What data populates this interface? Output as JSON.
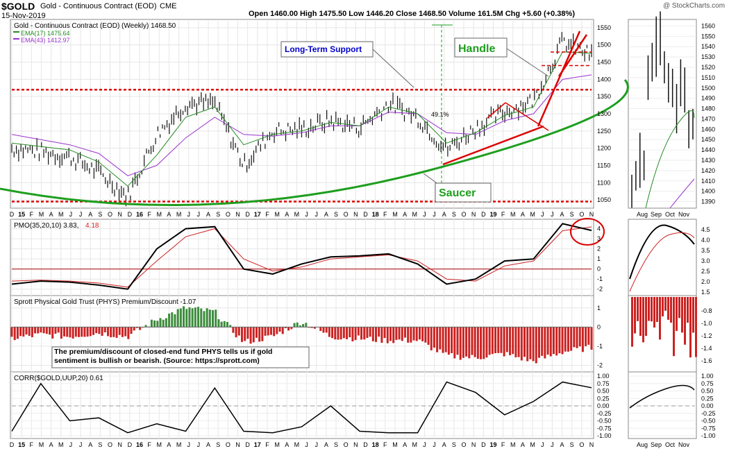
{
  "header": {
    "symbol": "$GOLD",
    "name": "Gold - Continuous Contract (EOD)",
    "exchange": "CME",
    "date": "15-Nov-2019",
    "quote": "Open 1460.00  High 1475.50  Low 1446.20  Close 1468.50  Volume 161.5M  Chg +5.60 (+0.38%)",
    "watermark": "@ StockCharts.com"
  },
  "colors": {
    "ema_fast": "#228b22",
    "ema_slow": "#9932cc",
    "support": "#dd0000",
    "saucer": "#1e9e1e",
    "bar_positive": "#3c8c3c",
    "bar_negative": "#cc2222",
    "annotation_text": "#0000cc"
  },
  "panels": {
    "price": {
      "title": "Gold - Continuous Contract (EOD) (Weekly) 1468.50",
      "legend": [
        {
          "label": "EMA(17) 1475.64",
          "color": "#228b22"
        },
        {
          "label": "EMA(43) 1412.97",
          "color": "#9932cc"
        }
      ],
      "annotations": {
        "long_term_support": "Long-Term Support",
        "handle": "Handle",
        "saucer": "Saucer",
        "pct": "49.1%"
      }
    },
    "pmo": {
      "title": "PMO(35,20,10) 3.83,",
      "value2": "4.18"
    },
    "phys": {
      "title": "Sprott Physical Gold Trust (PHYS) Premium/Discount -1.07",
      "note": "The premium/discount of closed-end fund PHYS tells us if gold sentiment is bullish or bearish. (Source: https://sprott.com)"
    },
    "corr": {
      "title": "CORR($GOLD,UUP,20) 0.61"
    }
  },
  "axes": {
    "main_months": [
      "D",
      "15",
      "F",
      "M",
      "A",
      "M",
      "J",
      "J",
      "A",
      "S",
      "O",
      "N",
      "D",
      "16",
      "F",
      "M",
      "A",
      "M",
      "J",
      "J",
      "A",
      "S",
      "O",
      "N",
      "D",
      "17",
      "F",
      "M",
      "A",
      "M",
      "J",
      "J",
      "A",
      "S",
      "O",
      "N",
      "D",
      "18",
      "F",
      "M",
      "A",
      "M",
      "J",
      "J",
      "A",
      "S",
      "O",
      "N",
      "D",
      "19",
      "F",
      "M",
      "A",
      "M",
      "J",
      "J",
      "A",
      "S",
      "O",
      "N"
    ],
    "side_months": [
      "Aug",
      "Sep",
      "Oct",
      "Nov"
    ],
    "price_ticks": [
      "1550",
      "1500",
      "1450",
      "1400",
      "1350",
      "1300",
      "1250",
      "1200",
      "1150",
      "1100",
      "1050"
    ],
    "price_ticks_side": [
      "1560",
      "1550",
      "1540",
      "1530",
      "1520",
      "1510",
      "1500",
      "1490",
      "1480",
      "1470",
      "1460",
      "1450",
      "1440",
      "1430",
      "1420",
      "1410",
      "1400",
      "1390"
    ],
    "pmo_ticks": [
      "4",
      "3",
      "2",
      "1",
      "0",
      "-1",
      "-2"
    ],
    "pmo_ticks_side": [
      "4.5",
      "4.0",
      "3.5",
      "3.0",
      "2.5",
      "2.0",
      "1.5"
    ],
    "phys_ticks": [
      "1",
      "0",
      "-1",
      "-2"
    ],
    "phys_ticks_side": [
      "-0.8",
      "-1.0",
      "-1.2",
      "-1.4",
      "-1.6"
    ],
    "corr_ticks": [
      "1.00",
      "0.75",
      "0.50",
      "0.25",
      "0.00",
      "-0.25",
      "-0.50",
      "-0.75",
      "-1.00"
    ]
  },
  "chart_data": [
    {
      "type": "line",
      "title": "Gold - Continuous Contract (EOD) (Weekly) 1468.50",
      "x": [
        "Dec-14",
        "Mar-15",
        "Jun-15",
        "Sep-15",
        "Dec-15",
        "Mar-16",
        "Jun-16",
        "Sep-16",
        "Dec-16",
        "Mar-17",
        "Jun-17",
        "Sep-17",
        "Dec-17",
        "Mar-18",
        "Jun-18",
        "Sep-18",
        "Dec-18",
        "Mar-19",
        "Jun-19",
        "Sep-19",
        "Nov-19"
      ],
      "series": [
        {
          "name": "Gold",
          "values": [
            1200,
            1190,
            1175,
            1130,
            1060,
            1240,
            1330,
            1330,
            1150,
            1250,
            1255,
            1280,
            1260,
            1330,
            1290,
            1195,
            1260,
            1305,
            1340,
            1510,
            1468.5
          ]
        },
        {
          "name": "EMA(17) 1475.64",
          "values": [
            1215,
            1205,
            1195,
            1160,
            1090,
            1180,
            1290,
            1320,
            1210,
            1240,
            1250,
            1275,
            1265,
            1320,
            1300,
            1215,
            1245,
            1295,
            1320,
            1480,
            1475.64
          ]
        },
        {
          "name": "EMA(43) 1412.97",
          "values": [
            1240,
            1225,
            1210,
            1185,
            1120,
            1150,
            1230,
            1290,
            1240,
            1235,
            1245,
            1265,
            1265,
            1305,
            1300,
            1245,
            1240,
            1280,
            1300,
            1400,
            1412.97
          ]
        }
      ],
      "annotations": {
        "long_term_support": 1370,
        "lower_support": 1045,
        "handle_level": 1440
      },
      "ylim": [
        1030,
        1570
      ]
    },
    {
      "type": "line",
      "title": "PMO(35,20,10) 3.83, 4.18",
      "x": [
        "Dec-14",
        "Mar-15",
        "Jun-15",
        "Sep-15",
        "Dec-15",
        "Mar-16",
        "Jun-16",
        "Sep-16",
        "Dec-16",
        "Mar-17",
        "Jun-17",
        "Sep-17",
        "Dec-17",
        "Mar-18",
        "Jun-18",
        "Sep-18",
        "Dec-18",
        "Mar-19",
        "Jun-19",
        "Sep-19",
        "Nov-19"
      ],
      "series": [
        {
          "name": "PMO",
          "values": [
            -1.5,
            -1.2,
            -1.3,
            -1.6,
            -2.0,
            2.0,
            4.0,
            4.2,
            0.0,
            -0.5,
            0.5,
            1.2,
            1.3,
            1.5,
            0.5,
            -1.5,
            -1.0,
            0.8,
            1.0,
            4.5,
            3.83
          ]
        },
        {
          "name": "Signal",
          "values": [
            -1.2,
            -1.1,
            -1.2,
            -1.4,
            -1.8,
            0.8,
            3.2,
            4.0,
            1.0,
            -0.2,
            0.2,
            1.0,
            1.2,
            1.4,
            0.8,
            -1.0,
            -1.2,
            0.3,
            0.8,
            3.8,
            4.18
          ]
        }
      ],
      "ylim": [
        -2.5,
        4.8
      ]
    },
    {
      "type": "bar",
      "title": "Sprott Physical Gold Trust (PHYS) Premium/Discount -1.07",
      "categories": [
        "Dec-14",
        "Mar-15",
        "Jun-15",
        "Sep-15",
        "Dec-15",
        "Mar-16",
        "Jun-16",
        "Sep-16",
        "Dec-16",
        "Mar-17",
        "Jun-17",
        "Sep-17",
        "Dec-17",
        "Mar-18",
        "Jun-18",
        "Sep-18",
        "Dec-18",
        "Mar-19",
        "Jun-19",
        "Sep-19",
        "Nov-19"
      ],
      "values": [
        -0.6,
        -0.4,
        -0.5,
        -0.3,
        -0.5,
        0.4,
        1.0,
        0.8,
        -0.8,
        -0.5,
        0.3,
        -0.5,
        -0.6,
        -0.7,
        -0.7,
        -1.5,
        -1.6,
        -1.4,
        -1.8,
        -1.3,
        -1.07
      ],
      "ylim": [
        -2.2,
        1.5
      ]
    },
    {
      "type": "line",
      "title": "CORR($GOLD,UUP,20) 0.61",
      "x": [
        "Dec-14",
        "Feb-15",
        "May-15",
        "Aug-15",
        "Nov-15",
        "Feb-16",
        "May-16",
        "Aug-16",
        "Nov-16",
        "Feb-17",
        "May-17",
        "Aug-17",
        "Nov-17",
        "Feb-18",
        "May-18",
        "Aug-18",
        "Nov-18",
        "Feb-19",
        "May-19",
        "Aug-19",
        "Nov-19"
      ],
      "values": [
        -0.85,
        0.75,
        -0.5,
        -0.4,
        -0.9,
        -0.6,
        -0.85,
        0.6,
        -0.85,
        -0.9,
        -0.7,
        0.0,
        -0.85,
        -0.9,
        -0.9,
        0.8,
        0.45,
        -0.3,
        0.15,
        0.8,
        0.61
      ],
      "ylim": [
        -1.0,
        1.0
      ]
    }
  ]
}
